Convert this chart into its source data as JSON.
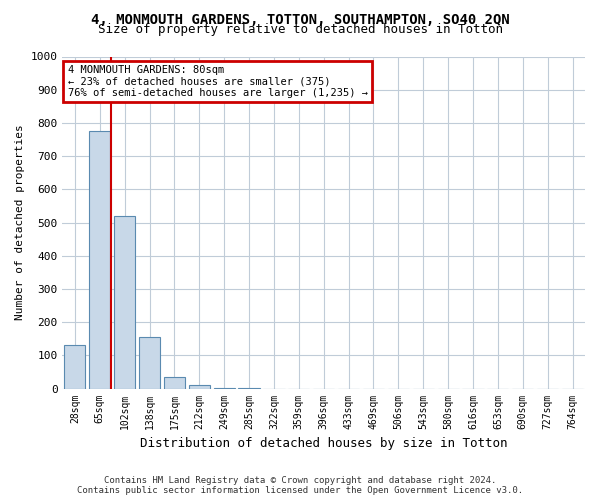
{
  "title_line1": "4, MONMOUTH GARDENS, TOTTON, SOUTHAMPTON, SO40 2QN",
  "title_line2": "Size of property relative to detached houses in Totton",
  "xlabel": "Distribution of detached houses by size in Totton",
  "ylabel": "Number of detached properties",
  "bar_values": [
    130,
    775,
    520,
    155,
    35,
    10,
    2,
    1,
    0,
    0,
    0,
    0,
    0,
    0,
    0,
    0,
    0,
    0,
    0,
    0,
    0
  ],
  "bin_labels": [
    "28sqm",
    "65sqm",
    "102sqm",
    "138sqm",
    "175sqm",
    "212sqm",
    "249sqm",
    "285sqm",
    "322sqm",
    "359sqm",
    "396sqm",
    "433sqm",
    "469sqm",
    "506sqm",
    "543sqm",
    "580sqm",
    "616sqm",
    "653sqm",
    "690sqm",
    "727sqm",
    "764sqm"
  ],
  "bar_color": "#c8d8e8",
  "bar_edge_color": "#5a8ab0",
  "red_line_x": 1.46,
  "annotation_text": "4 MONMOUTH GARDENS: 80sqm\n← 23% of detached houses are smaller (375)\n76% of semi-detached houses are larger (1,235) →",
  "annotation_box_color": "#cc0000",
  "ylim": [
    0,
    1000
  ],
  "yticks": [
    0,
    100,
    200,
    300,
    400,
    500,
    600,
    700,
    800,
    900,
    1000
  ],
  "footer_line1": "Contains HM Land Registry data © Crown copyright and database right 2024.",
  "footer_line2": "Contains public sector information licensed under the Open Government Licence v3.0.",
  "bg_color": "#ffffff",
  "grid_color": "#c0ccd8"
}
